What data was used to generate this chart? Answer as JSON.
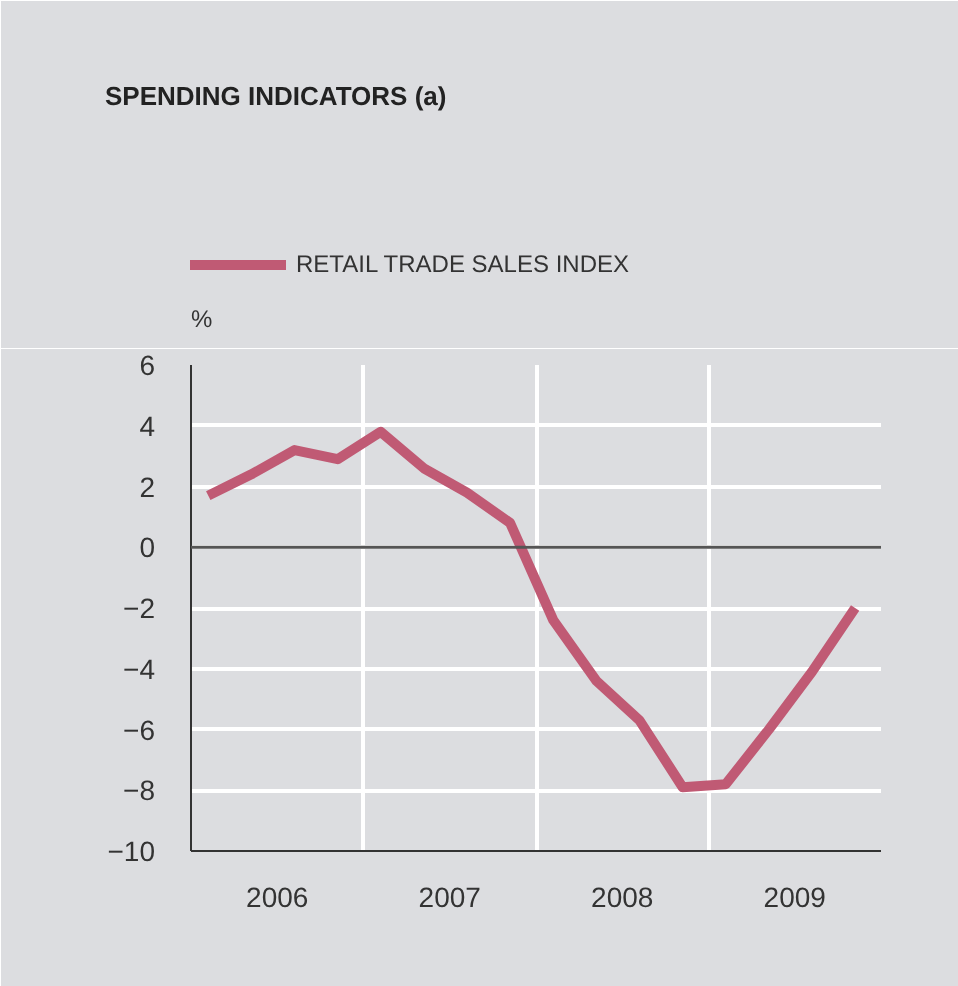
{
  "chart_data": {
    "type": "line",
    "title": "SPENDING INDICATORS (a)",
    "ylabel": "%",
    "x": [
      2006.1,
      2006.35,
      2006.6,
      2006.85,
      2007.1,
      2007.35,
      2007.6,
      2007.85,
      2008.1,
      2008.35,
      2008.6,
      2008.85,
      2009.1,
      2009.35,
      2009.6,
      2009.85
    ],
    "series": [
      {
        "name": "RETAIL TRADE SALES INDEX",
        "color": "#c05a74",
        "values": [
          1.7,
          2.4,
          3.2,
          2.9,
          3.8,
          2.6,
          1.8,
          0.8,
          -2.4,
          -4.4,
          -5.7,
          -7.9,
          -7.8,
          -6.0,
          -4.1,
          -2.0
        ]
      }
    ],
    "xlim": [
      2006,
      2010
    ],
    "xticks": [
      {
        "value": 2006,
        "label": null
      },
      {
        "value": 2006.5,
        "label": "2006"
      },
      {
        "value": 2007,
        "label": null
      },
      {
        "value": 2007.5,
        "label": "2007"
      },
      {
        "value": 2008,
        "label": null
      },
      {
        "value": 2008.5,
        "label": "2008"
      },
      {
        "value": 2009,
        "label": null
      },
      {
        "value": 2009.5,
        "label": "2009"
      },
      {
        "value": 2010,
        "label": null
      }
    ],
    "ylim": [
      -10,
      6
    ],
    "yticks": [
      -10,
      -8,
      -6,
      -4,
      -2,
      0,
      2,
      4,
      6
    ],
    "ref_lines": [
      {
        "axis": "y",
        "value": 0,
        "label": null,
        "color": "#555555"
      }
    ],
    "grid": true,
    "legend": "top left",
    "marker": "none",
    "line_style": "solid"
  }
}
